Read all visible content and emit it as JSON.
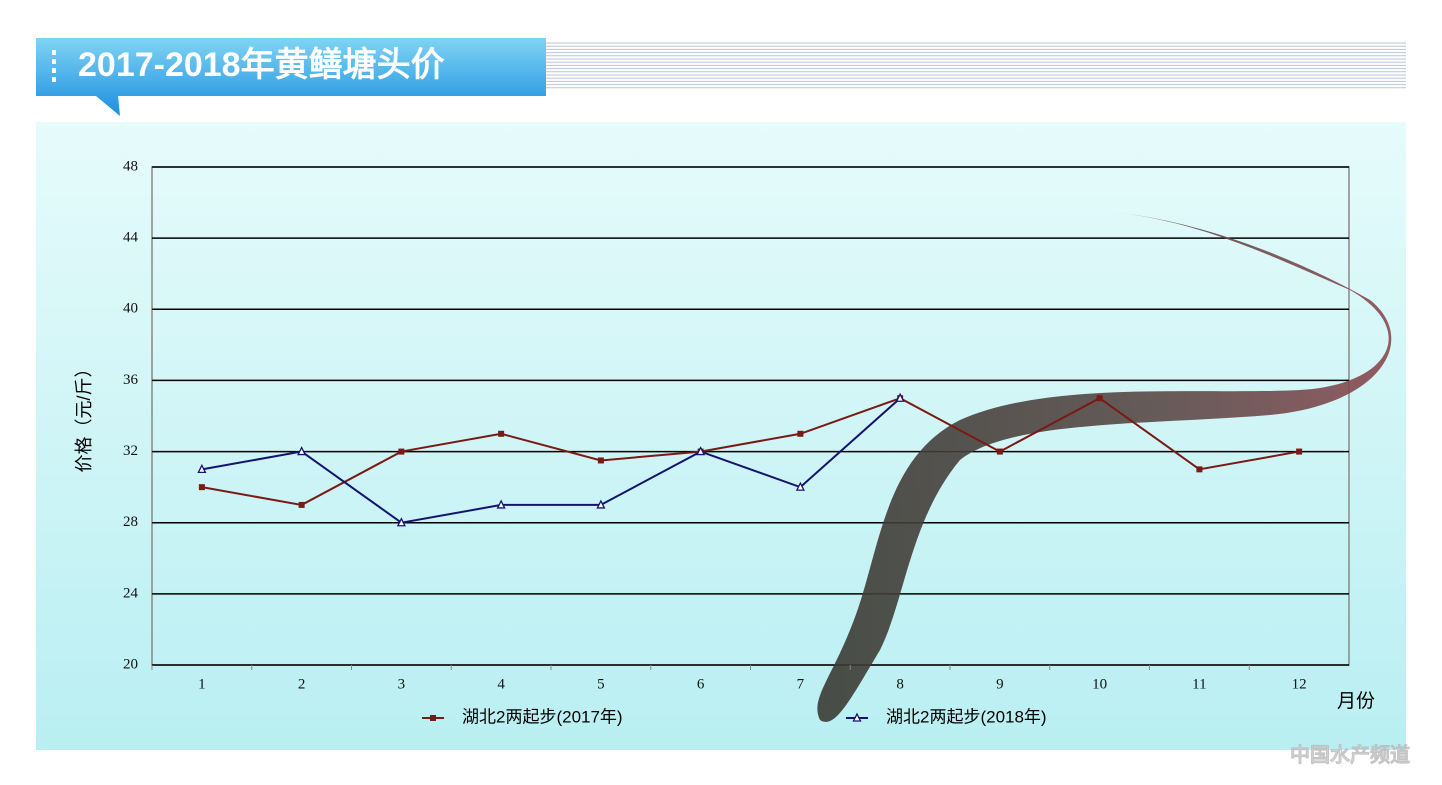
{
  "chart_data": {
    "type": "line",
    "title": "2017-2018年黄鳝塘头价",
    "y_label": "价格（元/斤）",
    "x_label": "月份",
    "categories": [
      "1",
      "2",
      "3",
      "4",
      "5",
      "6",
      "7",
      "8",
      "9",
      "10",
      "11",
      "12"
    ],
    "series": [
      {
        "name": "湖北2两起步(2017年)",
        "color": "#7a1a14",
        "marker": "square",
        "values": [
          30,
          29,
          32,
          33,
          31.5,
          32,
          33,
          35,
          32,
          35,
          31,
          32
        ]
      },
      {
        "name": "湖北2两起步(2018年)",
        "color": "#14146e",
        "marker": "triangle",
        "values": [
          31,
          32,
          28,
          29,
          29,
          32,
          30,
          35,
          null,
          null,
          null,
          null
        ]
      }
    ],
    "ylim": [
      20,
      48
    ],
    "yticks": [
      20,
      24,
      28,
      32,
      36,
      40,
      44,
      48
    ],
    "grid": true,
    "legend": "bottom",
    "watermark": "中国水产频道"
  }
}
